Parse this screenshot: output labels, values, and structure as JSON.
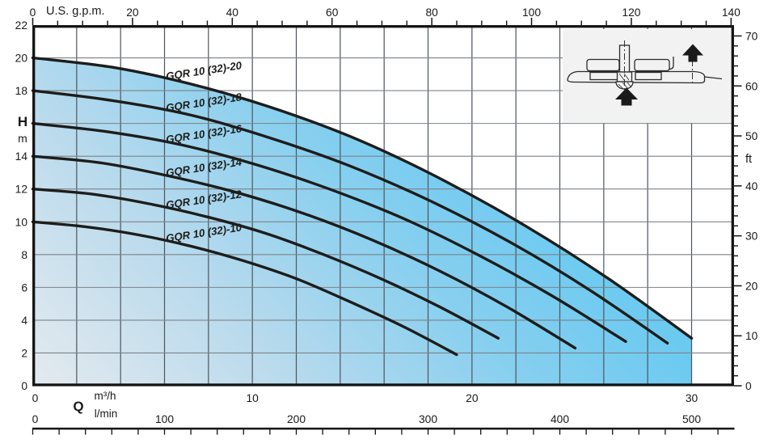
{
  "labels": {
    "top_axis_unit": "U.S. g.p.m.",
    "left_axis_symbol": "H",
    "left_axis_unit": "m",
    "right_axis_unit": "ft",
    "bottom_axis_symbol": "Q",
    "bottom_axis_unit_1": "m³/h",
    "bottom_axis_unit_2": "l/min"
  },
  "colors": {
    "curve": "#1d1d1b",
    "grid_vertical": "#4d555c",
    "grid_horizontal": "#7c8288",
    "border": "#131313",
    "tick": "#131313",
    "text": "#1a1a1a",
    "inset_bg": "#f2f2f2",
    "fill_stop_1": "#e4eaee",
    "fill_stop_2": "#b9daed",
    "fill_stop_3": "#86cfef",
    "fill_stop_4": "#5cc7f1"
  },
  "axes": {
    "top_gpm": {
      "tick_labels": [
        0,
        20,
        40,
        60,
        80,
        100,
        120,
        140
      ],
      "minor_step": 5,
      "max": 140
    },
    "left_m": {
      "tick_labels": [
        22,
        20,
        18,
        14,
        12,
        10,
        8,
        6,
        4,
        2,
        0
      ],
      "step": 2,
      "max": 22,
      "label_at_16": true
    },
    "right_ft": {
      "tick_labels": [
        0,
        10,
        20,
        30,
        40,
        50,
        60,
        70
      ],
      "minor_step": 2,
      "max": 70
    },
    "bottom_m3h": {
      "tick_labels": [
        0,
        10,
        20,
        30
      ],
      "grid_step": 2,
      "max_fill": 30
    },
    "bottom_lmin": {
      "tick_labels": [
        0,
        100,
        200,
        300,
        400,
        500
      ],
      "minor_step": 20,
      "minor_max": 520
    }
  },
  "chart_data": {
    "type": "line",
    "title": "",
    "xlabel": "Q",
    "x_units": [
      "m³/h",
      "l/min",
      "U.S. g.p.m."
    ],
    "ylabel": "H",
    "y_units": [
      "m",
      "ft"
    ],
    "x_range_m3h": [
      0,
      31.8
    ],
    "y_range_m": [
      0,
      22
    ],
    "grid": "on",
    "envelope": {
      "filled_under_series": "GQR 10 (32)-20",
      "max_flow_m3h": 30
    },
    "series": [
      {
        "name": "GQR 10 (32)-20",
        "points": [
          [
            0,
            20
          ],
          [
            3.75,
            19.4
          ],
          [
            7.5,
            18.3
          ],
          [
            11.25,
            16.8
          ],
          [
            15,
            14.9
          ],
          [
            18.75,
            12.5
          ],
          [
            22.5,
            9.7
          ],
          [
            26.25,
            6.5
          ],
          [
            30,
            2.9
          ]
        ]
      },
      {
        "name": "GQR 10 (32)-18",
        "points": [
          [
            0,
            18
          ],
          [
            3.61,
            17.4
          ],
          [
            7.23,
            16.5
          ],
          [
            10.84,
            15.1
          ],
          [
            14.45,
            13.4
          ],
          [
            18.06,
            11.3
          ],
          [
            21.68,
            8.8
          ],
          [
            25.29,
            5.9
          ],
          [
            28.9,
            2.6
          ]
        ]
      },
      {
        "name": "GQR 10 (32)-16",
        "points": [
          [
            0,
            16
          ],
          [
            3.38,
            15.5
          ],
          [
            6.75,
            14.7
          ],
          [
            10.13,
            13.5
          ],
          [
            13.5,
            12.0
          ],
          [
            16.88,
            10.2
          ],
          [
            20.25,
            8.0
          ],
          [
            23.63,
            5.5
          ],
          [
            27,
            2.7
          ]
        ]
      },
      {
        "name": "GQR 10 (32)-14",
        "points": [
          [
            0,
            14
          ],
          [
            3.09,
            13.6
          ],
          [
            6.18,
            12.8
          ],
          [
            9.26,
            11.8
          ],
          [
            12.35,
            10.5
          ],
          [
            15.44,
            8.9
          ],
          [
            18.53,
            7.0
          ],
          [
            21.61,
            4.8
          ],
          [
            24.7,
            2.3
          ]
        ]
      },
      {
        "name": "GQR 10 (32)-12",
        "points": [
          [
            0,
            12
          ],
          [
            2.65,
            11.7
          ],
          [
            5.3,
            11.1
          ],
          [
            7.95,
            10.3
          ],
          [
            10.6,
            9.3
          ],
          [
            13.25,
            8.0
          ],
          [
            15.9,
            6.5
          ],
          [
            18.55,
            4.8
          ],
          [
            21.2,
            2.9
          ]
        ]
      },
      {
        "name": "GQR 10 (32)-10",
        "points": [
          [
            0,
            10
          ],
          [
            2.41,
            9.7
          ],
          [
            4.83,
            9.2
          ],
          [
            7.24,
            8.5
          ],
          [
            9.65,
            7.6
          ],
          [
            12.06,
            6.5
          ],
          [
            14.48,
            5.1
          ],
          [
            16.89,
            3.6
          ],
          [
            19.3,
            1.9
          ]
        ]
      }
    ]
  },
  "inset": {
    "content": "pump cross-section schematic",
    "icons": [
      "flow-arrow-up-icon",
      "flow-arrow-up-icon"
    ]
  }
}
